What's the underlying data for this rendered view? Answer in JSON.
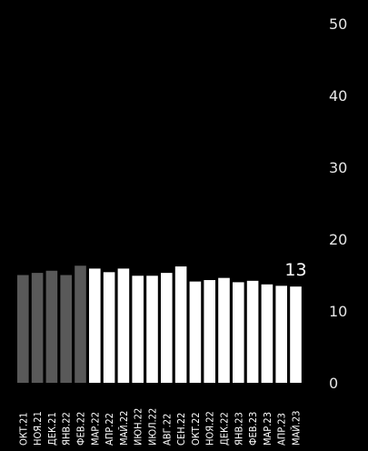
{
  "chart_data": {
    "type": "bar",
    "categories": [
      "ОКТ.21",
      "НОЯ.21",
      "ДЕК.21",
      "ЯНВ.22",
      "ФЕВ.22",
      "МАР.22",
      "АПР.22",
      "МАЙ.22",
      "ИЮН.22",
      "ИЮЛ.22",
      "АВГ.22",
      "СЕН.22",
      "ОКТ.22",
      "НОЯ.22",
      "ДЕК.22",
      "ЯНВ.23",
      "ФЕВ.23",
      "МАР.23",
      "АПР.23",
      "МАЙ.23"
    ],
    "values": [
      15.0,
      15.3,
      15.6,
      15.0,
      16.3,
      15.9,
      15.4,
      15.9,
      14.9,
      14.9,
      15.3,
      16.2,
      14.1,
      14.3,
      14.6,
      14.0,
      14.2,
      13.7,
      13.5,
      13.4
    ],
    "bar_colors": [
      "#595959",
      "#595959",
      "#595959",
      "#595959",
      "#595959",
      "#ffffff",
      "#ffffff",
      "#ffffff",
      "#ffffff",
      "#ffffff",
      "#ffffff",
      "#ffffff",
      "#ffffff",
      "#ffffff",
      "#ffffff",
      "#ffffff",
      "#ffffff",
      "#ffffff",
      "#ffffff",
      "#ffffff"
    ],
    "yticks": [
      "0",
      "10",
      "20",
      "30",
      "40",
      "50"
    ],
    "ylim": [
      0,
      50
    ],
    "data_labels": [
      {
        "index": 19,
        "text": "13"
      }
    ],
    "title": "",
    "xlabel": "",
    "ylabel": "",
    "grid": false,
    "legend": "none",
    "background": "#000000"
  }
}
